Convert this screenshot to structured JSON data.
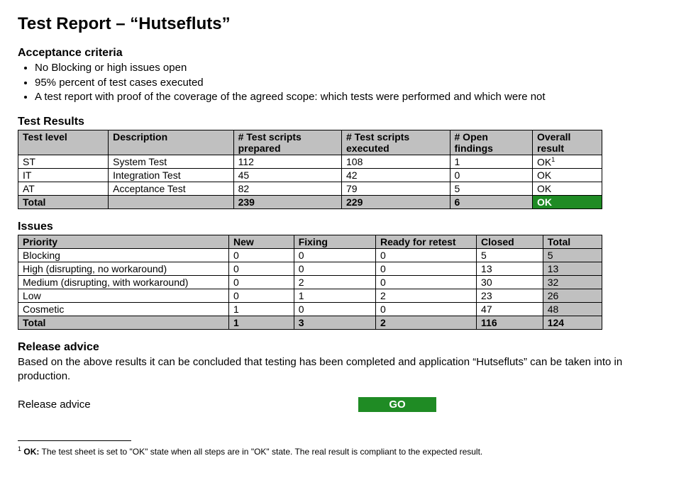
{
  "title": "Test Report – “Hutsefluts”",
  "acceptance": {
    "heading": "Acceptance criteria",
    "items": [
      "No Blocking or high issues open",
      "95% percent of test cases executed",
      "A test report with proof of the coverage of the agreed scope: which tests were performed and which were not"
    ]
  },
  "results": {
    "heading": "Test Results",
    "columns": [
      "Test level",
      "Description",
      "# Test scripts prepared",
      "# Test scripts executed",
      "# Open findings",
      "Overall result"
    ],
    "rows": [
      {
        "level": "ST",
        "desc": "System Test",
        "prepared": "112",
        "executed": "108",
        "open": "1",
        "overall": "OK",
        "note": true
      },
      {
        "level": "IT",
        "desc": "Integration Test",
        "prepared": "45",
        "executed": "42",
        "open": "0",
        "overall": "OK",
        "note": false
      },
      {
        "level": "AT",
        "desc": "Acceptance Test",
        "prepared": "82",
        "executed": "79",
        "open": "5",
        "overall": "OK",
        "note": false
      }
    ],
    "total": {
      "level": "Total",
      "desc": "",
      "prepared": "239",
      "executed": "229",
      "open": "6",
      "overall": "OK",
      "overall_badge": true
    }
  },
  "issues": {
    "heading": "Issues",
    "columns": [
      "Priority",
      "New",
      "Fixing",
      "Ready for retest",
      "Closed",
      "Total"
    ],
    "rows": [
      {
        "priority": "Blocking",
        "new": "0",
        "fixing": "0",
        "retest": "0",
        "closed": "5",
        "total": "5"
      },
      {
        "priority": "High (disrupting, no workaround)",
        "new": "0",
        "fixing": "0",
        "retest": "0",
        "closed": "13",
        "total": "13"
      },
      {
        "priority": "Medium (disrupting, with workaround)",
        "new": "0",
        "fixing": "2",
        "retest": "0",
        "closed": "30",
        "total": "32"
      },
      {
        "priority": "Low",
        "new": "0",
        "fixing": "1",
        "retest": "2",
        "closed": "23",
        "total": "26"
      },
      {
        "priority": "Cosmetic",
        "new": "1",
        "fixing": "0",
        "retest": "0",
        "closed": "47",
        "total": "48"
      }
    ],
    "total": {
      "priority": "Total",
      "new": "1",
      "fixing": "3",
      "retest": "2",
      "closed": "116",
      "total": "124"
    }
  },
  "release": {
    "heading": "Release advice",
    "text": "Based on the above results it can be concluded that testing has been completed and application “Hutsefluts” can be taken into in production.",
    "label": "Release advice",
    "decision": "GO",
    "decision_color": "#1f8b24"
  },
  "footnote": {
    "marker": "1",
    "label": "OK:",
    "text": "The test sheet is set to \"OK\" state when all steps are in \"OK\" state. The real result is compliant to the expected result."
  },
  "colors": {
    "header_bg": "#c0c0c0",
    "ok_bg": "#1f8b24",
    "ok_fg": "#ffffff",
    "border": "#000000",
    "page_bg": "#ffffff"
  }
}
